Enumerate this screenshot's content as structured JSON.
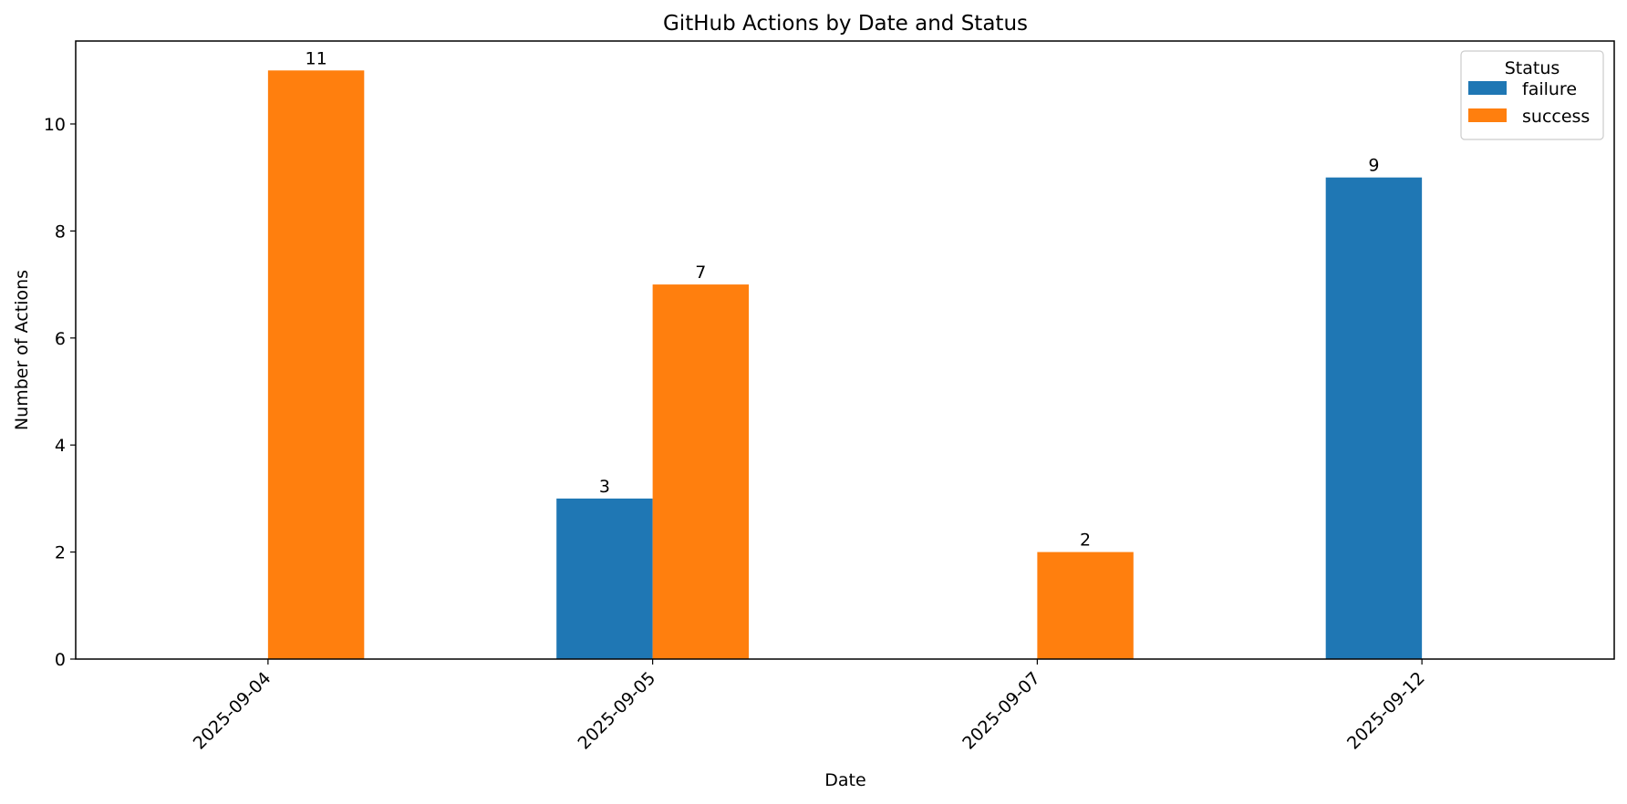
{
  "chart_data": {
    "type": "bar",
    "title": "GitHub Actions by Date and Status",
    "xlabel": "Date",
    "ylabel": "Number of Actions",
    "categories": [
      "2025-09-04",
      "2025-09-05",
      "2025-09-07",
      "2025-09-12"
    ],
    "series": [
      {
        "name": "failure",
        "values": [
          0,
          3,
          0,
          9
        ],
        "color": "#1f77b4"
      },
      {
        "name": "success",
        "values": [
          11,
          7,
          2,
          0
        ],
        "color": "#ff7f0e"
      }
    ],
    "data_labels": true,
    "ylim": [
      0,
      11.55
    ],
    "yticks": [
      0,
      2,
      4,
      6,
      8,
      10
    ],
    "grid": false,
    "legend": {
      "title": "Status",
      "position": "top-right"
    }
  }
}
